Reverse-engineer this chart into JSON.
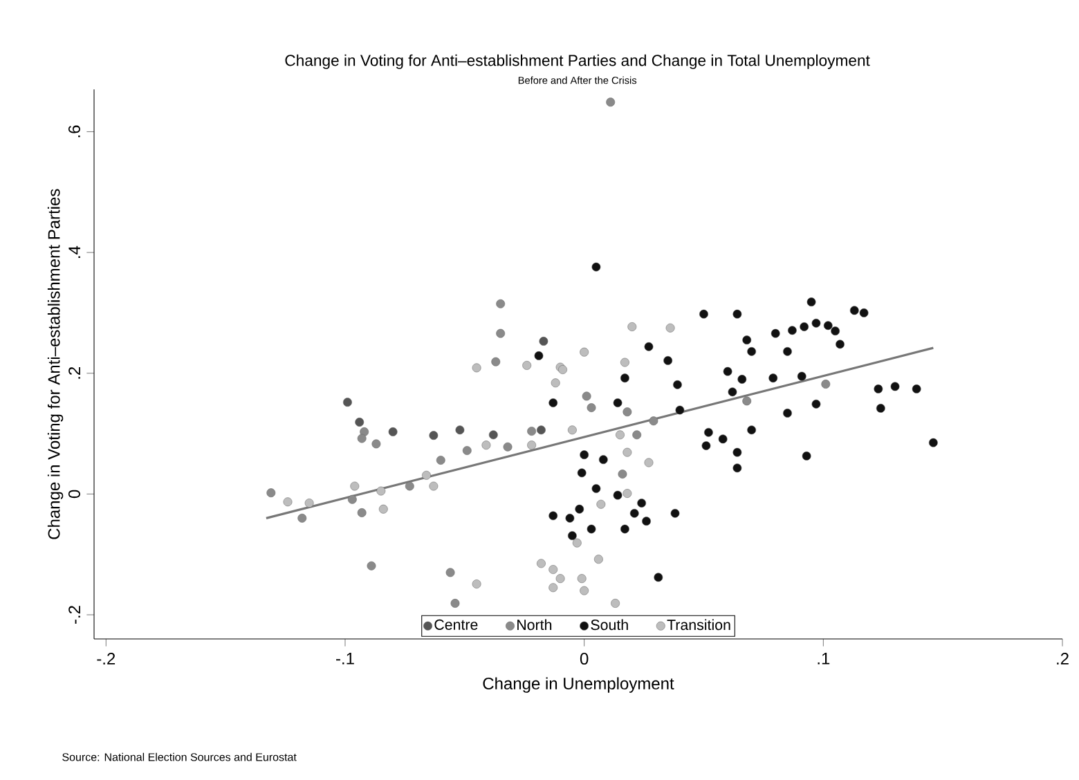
{
  "chart_data": {
    "type": "scatter",
    "title": "Change in Voting for Anti–establishment Parties and Change in Total Unemployment",
    "subtitle": "Before and After the Crisis",
    "xlabel": "Change in Unemployment",
    "ylabel": "Change in Voting for Anti–establishment Parties",
    "annotations": [
      "Source: National Election Sources and Eurostat"
    ],
    "xlim": [
      -0.205,
      0.2
    ],
    "ylim": [
      -0.24,
      0.67
    ],
    "xticks": [
      {
        "value": -0.2,
        "label": "-.2"
      },
      {
        "value": -0.1,
        "label": "-.1"
      },
      0,
      {
        "value": 0.1,
        "label": ".1"
      },
      {
        "value": 0.2,
        "label": ".2"
      }
    ],
    "yticks": [
      {
        "value": -0.2,
        "label": "-.2"
      },
      0,
      {
        "value": 0.2,
        "label": ".2"
      },
      {
        "value": 0.4,
        "label": ".4"
      },
      {
        "value": 0.6,
        "label": ".6"
      }
    ],
    "legend": "bottom",
    "series": [
      {
        "name": "Centre",
        "marker": "circle",
        "color": "#555555",
        "x": [
          -0.099,
          -0.08,
          -0.063,
          -0.052,
          -0.017,
          -0.094,
          -0.038,
          -0.018
        ],
        "values": [
          0.152,
          0.103,
          0.097,
          0.106,
          0.253,
          0.119,
          0.098,
          0.106
        ]
      },
      {
        "name": "North",
        "marker": "circle",
        "color": "#8a8a8a",
        "x": [
          0.011,
          -0.035,
          -0.035,
          -0.037,
          -0.092,
          -0.093,
          -0.087,
          -0.049,
          -0.032,
          -0.022,
          -0.06,
          -0.073,
          -0.097,
          -0.093,
          -0.118,
          -0.131,
          -0.089,
          -0.056,
          -0.054,
          0.001,
          0.003,
          0.018,
          0.029,
          0.022,
          0.016,
          0.101,
          0.068
        ],
        "values": [
          0.649,
          0.315,
          0.266,
          0.219,
          0.103,
          0.092,
          0.083,
          0.072,
          0.078,
          0.104,
          0.056,
          0.013,
          -0.009,
          -0.031,
          -0.04,
          0.002,
          -0.119,
          -0.13,
          -0.181,
          0.162,
          0.143,
          0.136,
          0.121,
          0.098,
          0.033,
          0.182,
          0.154
        ]
      },
      {
        "name": "South",
        "marker": "circle",
        "color": "#111111",
        "x": [
          0.005,
          0.05,
          0.064,
          0.068,
          0.07,
          0.027,
          0.035,
          0.017,
          0.039,
          0.06,
          0.066,
          0.062,
          -0.013,
          0.014,
          0.04,
          0.052,
          0.058,
          0.051,
          0.064,
          0.07,
          0.064,
          0.0,
          0.008,
          -0.001,
          0.005,
          0.014,
          0.024,
          0.021,
          -0.013,
          -0.006,
          -0.002,
          0.026,
          0.038,
          0.017,
          0.003,
          -0.005,
          0.031,
          0.095,
          0.113,
          0.117,
          0.087,
          0.092,
          0.097,
          0.102,
          0.105,
          0.08,
          0.107,
          0.085,
          0.079,
          0.091,
          0.085,
          0.097,
          0.123,
          0.13,
          0.139,
          0.124,
          0.093,
          0.146,
          -0.019
        ],
        "values": [
          0.376,
          0.298,
          0.298,
          0.255,
          0.236,
          0.244,
          0.221,
          0.192,
          0.181,
          0.203,
          0.19,
          0.169,
          0.151,
          0.151,
          0.139,
          0.102,
          0.091,
          0.08,
          0.069,
          0.106,
          0.043,
          0.065,
          0.057,
          0.035,
          0.009,
          -0.002,
          -0.015,
          -0.032,
          -0.036,
          -0.04,
          -0.025,
          -0.045,
          -0.032,
          -0.058,
          -0.058,
          -0.069,
          -0.138,
          0.318,
          0.304,
          0.3,
          0.271,
          0.277,
          0.283,
          0.279,
          0.27,
          0.266,
          0.248,
          0.236,
          0.192,
          0.195,
          0.134,
          0.149,
          0.174,
          0.178,
          0.174,
          0.142,
          0.063,
          0.085,
          0.229
        ]
      },
      {
        "name": "Transition",
        "marker": "circle",
        "color": "#bdbdbd",
        "x": [
          -0.045,
          -0.024,
          -0.01,
          -0.041,
          -0.022,
          -0.066,
          -0.063,
          -0.085,
          -0.096,
          -0.084,
          -0.124,
          -0.115,
          -0.045,
          0.02,
          0.036,
          0.0,
          0.017,
          -0.009,
          -0.012,
          -0.005,
          0.015,
          0.018,
          0.027,
          0.018,
          0.007,
          -0.003,
          0.006,
          -0.001,
          -0.013,
          0.013,
          -0.013,
          -0.018,
          0.0,
          -0.01
        ],
        "values": [
          0.209,
          0.213,
          0.21,
          0.081,
          0.081,
          0.031,
          0.013,
          0.005,
          0.013,
          -0.025,
          -0.013,
          -0.015,
          -0.149,
          0.277,
          0.275,
          0.235,
          0.218,
          0.206,
          0.184,
          0.106,
          0.098,
          0.069,
          0.052,
          0.001,
          -0.017,
          -0.081,
          -0.108,
          -0.14,
          -0.125,
          -0.181,
          -0.155,
          -0.115,
          -0.16,
          -0.14
        ]
      },
      {
        "type": "line",
        "marker": "none",
        "color": "#777777",
        "x": [
          -0.133,
          0.146
        ],
        "values": [
          -0.04,
          0.242
        ]
      }
    ]
  }
}
